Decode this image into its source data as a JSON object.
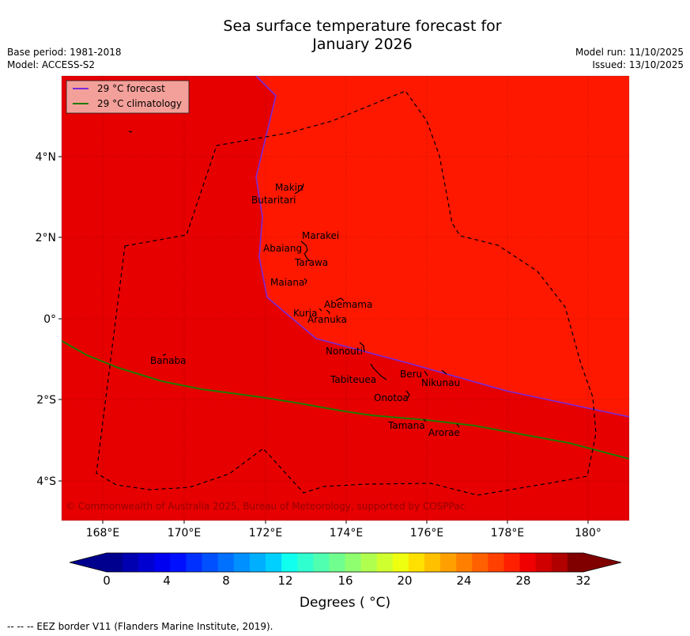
{
  "title_line1": "Sea surface temperature forecast for",
  "title_line2": "January 2026",
  "base_period": "Base period: 1981-2018",
  "model": "Model: ACCESS-S2",
  "model_run": "Model run: 11/10/2025",
  "issued": "Issued: 13/10/2025",
  "legend": {
    "forecast": "29 °C  forecast",
    "climatology": "29 °C  climatology"
  },
  "lat_ticks": [
    "4°N",
    "2°N",
    "0°",
    "2°S",
    "4°S"
  ],
  "lon_ticks": [
    "168°E",
    "170°E",
    "172°E",
    "174°E",
    "176°E",
    "178°E",
    "180°"
  ],
  "islands": [
    "Makin",
    "Butaritari",
    "Marakei",
    "Abaiang",
    "Tarawa",
    "Maiana",
    "Abemama",
    "Kuria",
    "Aranuka",
    "Nonouti",
    "Banaba",
    "Beru",
    "Nikunau",
    "Tabiteuea",
    "Onotoa",
    "Tamana",
    "Arorae"
  ],
  "copyright": "© Commonwealth of Australia 2025, Bureau of Meteorology, supported by COSPPac",
  "colorbar": {
    "ticks": [
      "0",
      "4",
      "8",
      "12",
      "16",
      "20",
      "24",
      "28",
      "32"
    ],
    "label": "Degrees ( °C)",
    "colors": [
      "#00008f",
      "#0000b0",
      "#0000d0",
      "#0000f0",
      "#0010ff",
      "#0030ff",
      "#0050ff",
      "#0070ff",
      "#0090ff",
      "#00b0ff",
      "#00d0ff",
      "#10ffef",
      "#30ffcf",
      "#50ffaf",
      "#70ff8f",
      "#90ff6f",
      "#b0ff4f",
      "#d0ff2f",
      "#efff10",
      "#ffe000",
      "#ffc000",
      "#ffa000",
      "#ff8000",
      "#ff6000",
      "#ff4000",
      "#ff2000",
      "#f00000",
      "#d00000",
      "#b00000",
      "#800000"
    ],
    "under_color": "#00008f",
    "over_color": "#800000"
  },
  "map_colors": {
    "warm": "#ff1800",
    "cool": "#e60000",
    "forecast_line": "#7a2ad8",
    "climatology_line": "#237a00"
  },
  "footer": "--  --  -- EEZ border V11 (Flanders Marine Institute, 2019)."
}
